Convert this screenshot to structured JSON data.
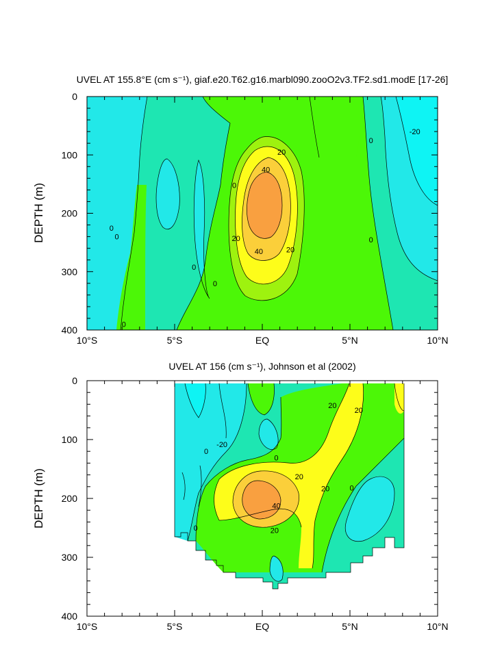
{
  "colors": {
    "pos40": "#f9a040",
    "pos30": "#fbcf3a",
    "pos20": "#fdfd1a",
    "pos10": "#9ef20f",
    "pos0": "#4cf707",
    "neg0": "#1ee6b2",
    "neg10": "#22e8e8",
    "neg20": "#0ef4f4"
  },
  "chart_data": [
    {
      "type": "contour",
      "title": "UVEL AT 155.8°E (cm s⁻¹), giaf.e20.T62.g16.marbl090.zooO2v3.TF2.sd1.modE [17-26]",
      "ylabel": "DEPTH (m)",
      "xlim": [
        -10,
        10
      ],
      "ylim": [
        400,
        0
      ],
      "x_ticks": [
        -10,
        -5,
        0,
        5,
        10
      ],
      "x_tick_labels": [
        "10°S",
        "5°S",
        "EQ",
        "5°N",
        "10°N"
      ],
      "y_ticks": [
        0,
        100,
        200,
        300,
        400
      ],
      "y_tick_labels": [
        "0",
        "100",
        "200",
        "300",
        "400"
      ],
      "contour_labels": [
        {
          "text": "20",
          "lat": 1.1,
          "depth": 95
        },
        {
          "text": "40",
          "lat": 0.2,
          "depth": 125
        },
        {
          "text": "0",
          "lat": -1.6,
          "depth": 152
        },
        {
          "text": "20",
          "lat": -1.5,
          "depth": 243
        },
        {
          "text": "40",
          "lat": -0.2,
          "depth": 265
        },
        {
          "text": "20",
          "lat": 1.6,
          "depth": 262
        },
        {
          "text": "0",
          "lat": -8.6,
          "depth": 225
        },
        {
          "text": "0",
          "lat": -8.3,
          "depth": 240
        },
        {
          "text": "0",
          "lat": -3.9,
          "depth": 292
        },
        {
          "text": "0",
          "lat": -2.7,
          "depth": 320
        },
        {
          "text": "0",
          "lat": -7.9,
          "depth": 390
        },
        {
          "text": "0",
          "lat": 6.2,
          "depth": 75
        },
        {
          "text": "0",
          "lat": 6.2,
          "depth": 245
        },
        {
          "text": "-20",
          "lat": 8.7,
          "depth": 60
        }
      ]
    },
    {
      "type": "contour",
      "title": "UVEL AT 156 (cm s⁻¹), Johnson et al (2002)",
      "ylabel": "DEPTH (m)",
      "xlim": [
        -10,
        10
      ],
      "ylim": [
        400,
        0
      ],
      "x_ticks": [
        -10,
        -5,
        0,
        5,
        10
      ],
      "x_tick_labels": [
        "10°S",
        "5°S",
        "EQ",
        "5°N",
        "10°N"
      ],
      "y_ticks": [
        0,
        100,
        200,
        300,
        400
      ],
      "y_tick_labels": [
        "0",
        "100",
        "200",
        "300",
        "400"
      ],
      "contour_labels": [
        {
          "text": "20",
          "lat": 4.0,
          "depth": 42
        },
        {
          "text": "20",
          "lat": 5.5,
          "depth": 50
        },
        {
          "text": "-20",
          "lat": -2.3,
          "depth": 108
        },
        {
          "text": "0",
          "lat": -3.2,
          "depth": 120
        },
        {
          "text": "0",
          "lat": 0.8,
          "depth": 131
        },
        {
          "text": "20",
          "lat": 2.1,
          "depth": 163
        },
        {
          "text": "20",
          "lat": 3.6,
          "depth": 183
        },
        {
          "text": "0",
          "lat": 5.1,
          "depth": 182
        },
        {
          "text": "40",
          "lat": 0.8,
          "depth": 212
        },
        {
          "text": "20",
          "lat": 0.7,
          "depth": 254
        },
        {
          "text": "0",
          "lat": -3.8,
          "depth": 250
        }
      ]
    }
  ]
}
